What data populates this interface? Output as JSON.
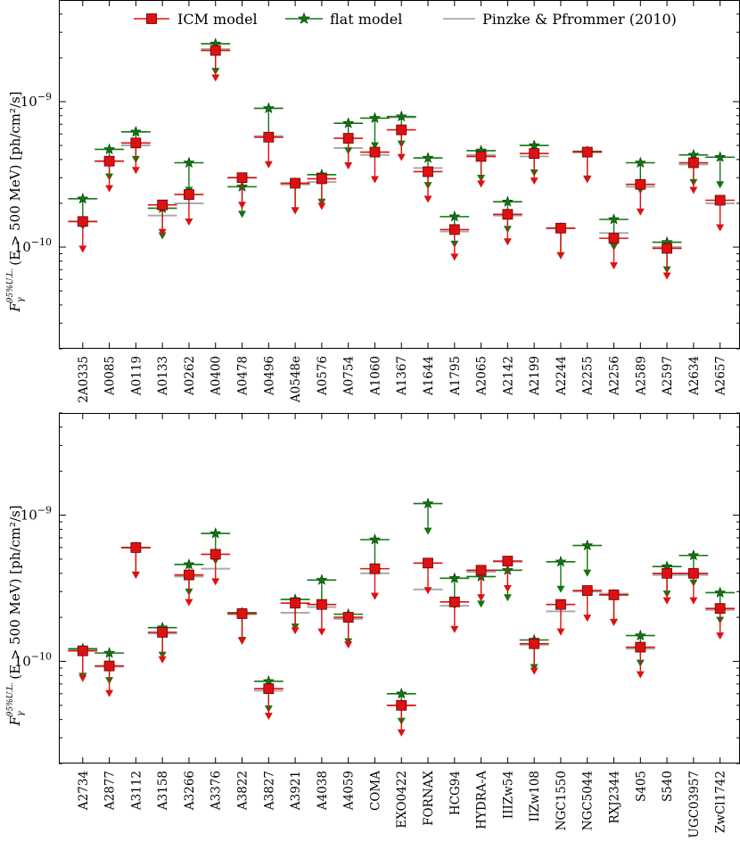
{
  "chart_data": {
    "type": "scatter",
    "yscale": "log",
    "ylim": [
      2e-11,
      5e-09
    ],
    "yticks": [
      {
        "value": 1e-10,
        "label": "10",
        "exp": "−10"
      },
      {
        "value": 1e-09,
        "label": "10",
        "exp": "−9"
      }
    ],
    "ylabel": {
      "symbol": "F",
      "sub": "γ",
      "sup": "95%U.L.",
      "rest": "(E > 500 MeV) [ph/cm²/s]"
    },
    "legend": {
      "position": "top",
      "entries": [
        "ICM model",
        "flat model",
        "Pinzke & Pfrommer (2010)"
      ]
    },
    "colors": {
      "icm": "#dd1111",
      "flat": "#117711",
      "pinzke": "#aaaaaa"
    },
    "panels": [
      {
        "name": "top",
        "categories": [
          "2A0335",
          "A0085",
          "A0119",
          "A0133",
          "A0262",
          "A0400",
          "A0478",
          "A0496",
          "A0548e",
          "A0576",
          "A0754",
          "A1060",
          "A1367",
          "A1644",
          "A1795",
          "A2065",
          "A2142",
          "A2199",
          "A2244",
          "A2255",
          "A2256",
          "A2589",
          "A2597",
          "A2634",
          "A2657"
        ],
        "series": [
          {
            "name": "ICM model",
            "values": [
              1.5e-10,
              3.9e-10,
              5.2e-10,
              1.95e-10,
              2.3e-10,
              2.25e-09,
              3e-10,
              5.7e-10,
              2.75e-10,
              2.95e-10,
              5.6e-10,
              4.5e-10,
              6.4e-10,
              3.3e-10,
              1.32e-10,
              4.2e-10,
              1.68e-10,
              4.4e-10,
              1.35e-10,
              4.5e-10,
              1.15e-10,
              2.7e-10,
              9.8e-11,
              3.8e-10,
              2.1e-10
            ]
          },
          {
            "name": "flat model",
            "values": [
              2.15e-10,
              4.7e-10,
              6.2e-10,
              1.85e-10,
              3.8e-10,
              2.5e-09,
              2.6e-10,
              9e-10,
              2.75e-10,
              3.15e-10,
              7.1e-10,
              7.7e-10,
              7.9e-10,
              4.1e-10,
              1.62e-10,
              4.6e-10,
              2.05e-10,
              5e-10,
              1.35e-10,
              4.55e-10,
              1.55e-10,
              3.8e-10,
              1.08e-10,
              4.3e-10,
              4.15e-10
            ]
          },
          {
            "name": "Pinzke & Pfrommer (2010)",
            "values": [
              1.5e-10,
              3.9e-10,
              5e-10,
              1.65e-10,
              2e-10,
              2.3e-09,
              3e-10,
              5.8e-10,
              2.7e-10,
              2.8e-10,
              4.8e-10,
              4.3e-10,
              7.8e-10,
              3.5e-10,
              1.28e-10,
              4.3e-10,
              1.65e-10,
              4.2e-10,
              1.35e-10,
              4.5e-10,
              1.25e-10,
              2.6e-10,
              1e-10,
              3.7e-10,
              2e-10
            ]
          }
        ]
      },
      {
        "name": "bottom",
        "categories": [
          "A2734",
          "A2877",
          "A3112",
          "A3158",
          "A3266",
          "A3376",
          "A3822",
          "A3827",
          "A3921",
          "A4038",
          "A4059",
          "COMA",
          "EXO0422",
          "FORNAX",
          "HCG94",
          "HYDRA-A",
          "IIIZw54",
          "IIZw108",
          "NGC1550",
          "NGC5044",
          "RXJ2344",
          "S405",
          "S540",
          "UGC03957",
          "ZwCl1742"
        ],
        "series": [
          {
            "name": "ICM model",
            "values": [
              1.18e-10,
              9.3e-11,
              6e-10,
              1.58e-10,
              3.9e-10,
              5.4e-10,
              2.12e-10,
              6.5e-11,
              2.5e-10,
              2.45e-10,
              2e-10,
              4.3e-10,
              5e-11,
              4.7e-10,
              2.55e-10,
              4.2e-10,
              4.85e-10,
              1.32e-10,
              2.45e-10,
              3.05e-10,
              2.85e-10,
              1.25e-10,
              4e-10,
              4e-10,
              2.3e-10
            ]
          },
          {
            "name": "flat model",
            "values": [
              1.22e-10,
              1.14e-10,
              6e-10,
              1.7e-10,
              4.6e-10,
              7.5e-10,
              2.15e-10,
              7.3e-11,
              2.65e-10,
              3.6e-10,
              2.1e-10,
              6.8e-10,
              6e-11,
              1.2e-09,
              3.7e-10,
              3.8e-10,
              4.2e-10,
              1.4e-10,
              4.8e-10,
              6.2e-10,
              2.85e-10,
              1.5e-10,
              4.45e-10,
              5.3e-10,
              2.95e-10
            ]
          },
          {
            "name": "Pinzke & Pfrommer (2010)",
            "values": [
              1.2e-10,
              9.2e-11,
              6e-10,
              1.55e-10,
              3.8e-10,
              4.3e-10,
              2.1e-10,
              6.3e-11,
              2.15e-10,
              2.35e-10,
              1.95e-10,
              4e-10,
              5e-11,
              3.1e-10,
              2.4e-10,
              4.1e-10,
              4.8e-10,
              1.3e-10,
              2.2e-10,
              3e-10,
              2.9e-10,
              1.22e-10,
              3.9e-10,
              3.9e-10,
              2.25e-10
            ]
          }
        ]
      }
    ]
  }
}
